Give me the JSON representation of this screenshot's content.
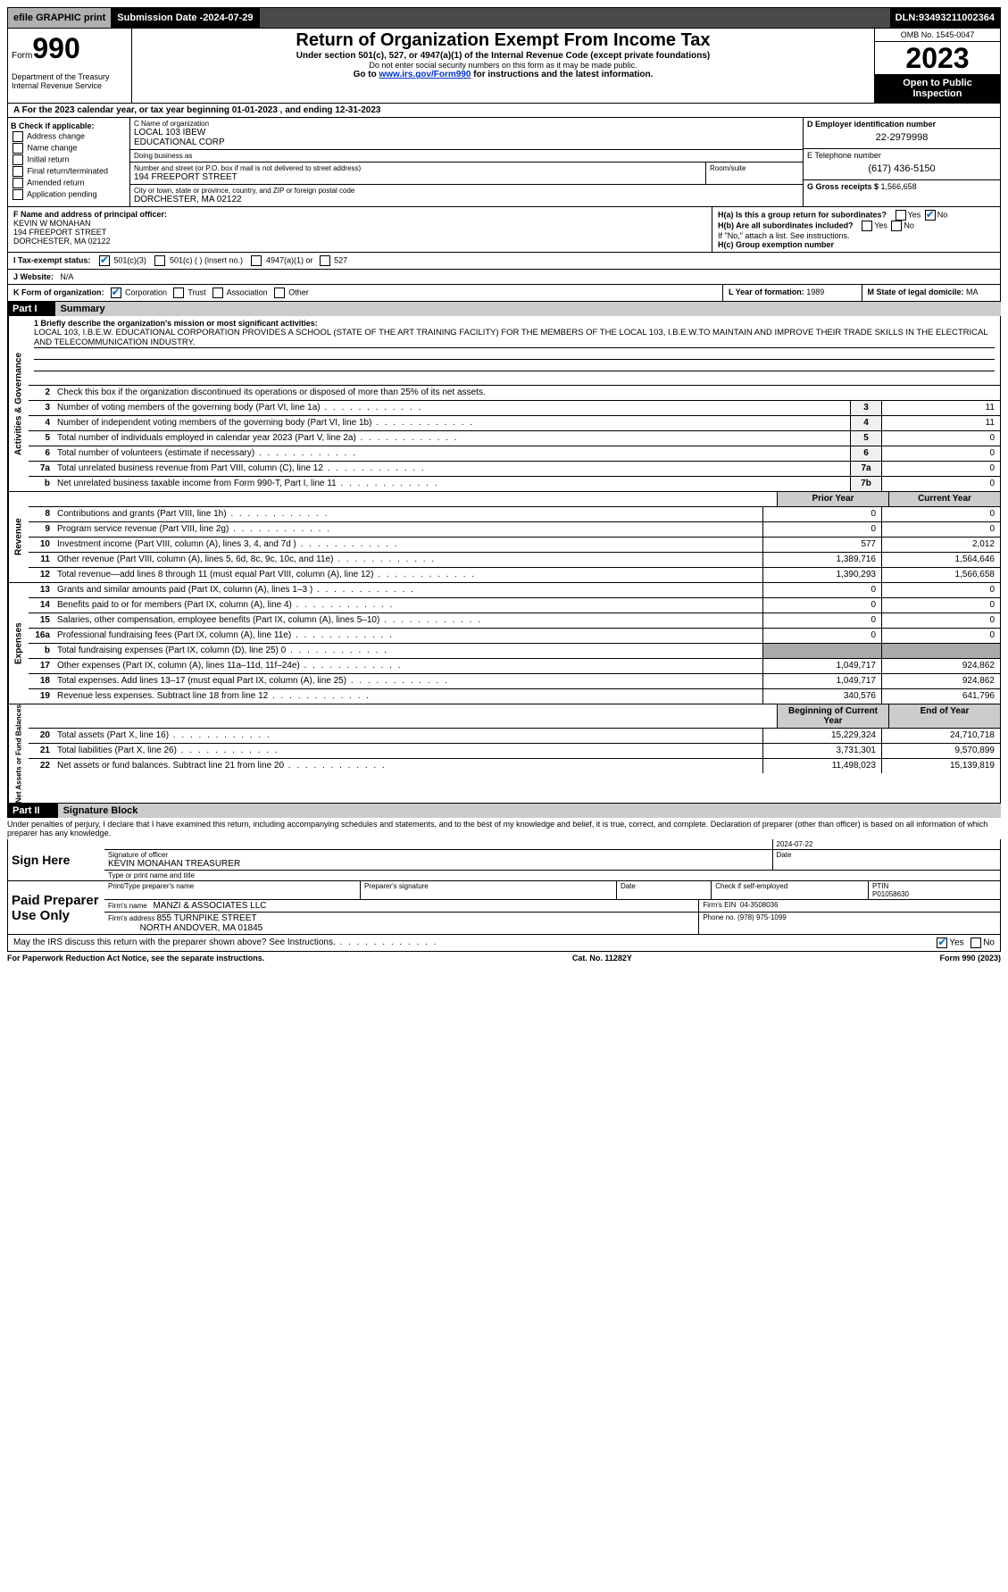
{
  "topbar": {
    "efile": "efile GRAPHIC print",
    "submission_label": "Submission Date - ",
    "submission_date": "2024-07-29",
    "dln_label": "DLN: ",
    "dln": "93493211002364"
  },
  "header": {
    "form_prefix": "Form",
    "form_number": "990",
    "dept": "Department of the Treasury Internal Revenue Service",
    "title": "Return of Organization Exempt From Income Tax",
    "sub1": "Under section 501(c), 527, or 4947(a)(1) of the Internal Revenue Code (except private foundations)",
    "sub2": "Do not enter social security numbers on this form as it may be made public.",
    "sub3_pre": "Go to ",
    "sub3_link": "www.irs.gov/Form990",
    "sub3_post": " for instructions and the latest information.",
    "omb": "OMB No. 1545-0047",
    "year": "2023",
    "inspect": "Open to Public Inspection"
  },
  "rowA": "A For the 2023 calendar year, or tax year beginning 01-01-2023   , and ending 12-31-2023",
  "colB": {
    "label": "B Check if applicable:",
    "items": [
      "Address change",
      "Name change",
      "Initial return",
      "Final return/terminated",
      "Amended return",
      "Application pending"
    ]
  },
  "colC": {
    "name_label": "C Name of organization",
    "name1": "LOCAL 103 IBEW",
    "name2": "EDUCATIONAL CORP",
    "dba_label": "Doing business as",
    "addr_label": "Number and street (or P.O. box if mail is not delivered to street address)",
    "addr": "194 FREEPORT STREET",
    "room_label": "Room/suite",
    "city_label": "City or town, state or province, country, and ZIP or foreign postal code",
    "city": "DORCHESTER, MA  02122"
  },
  "colD": {
    "ein_label": "D Employer identification number",
    "ein": "22-2979998",
    "phone_label": "E Telephone number",
    "phone": "(617) 436-5150",
    "gross_label": "G Gross receipts $ ",
    "gross": "1,566,658"
  },
  "rowF": {
    "label": "F  Name and address of principal officer:",
    "name": "KEVIN W MONAHAN",
    "addr1": "194 FREEPORT STREET",
    "addr2": "DORCHESTER, MA  02122"
  },
  "rowH": {
    "ha": "H(a)  Is this a group return for subordinates?",
    "hb": "H(b)  Are all subordinates included?",
    "hb2": "If \"No,\" attach a list. See instructions.",
    "hc": "H(c)  Group exemption number",
    "yes": "Yes",
    "no": "No"
  },
  "rowI": {
    "label": "I   Tax-exempt status:",
    "o1": "501(c)(3)",
    "o2": "501(c) (  ) (insert no.)",
    "o3": "4947(a)(1) or",
    "o4": "527"
  },
  "rowJ": {
    "label": "J   Website:",
    "val": "N/A"
  },
  "rowK": {
    "label": "K Form of organization:",
    "o1": "Corporation",
    "o2": "Trust",
    "o3": "Association",
    "o4": "Other"
  },
  "rowL": {
    "label": "L Year of formation: ",
    "val": "1989"
  },
  "rowM": {
    "label": "M State of legal domicile: ",
    "val": "MA"
  },
  "part1": {
    "num": "Part I",
    "title": "Summary",
    "mission_label": "1   Briefly describe the organization's mission or most significant activities:",
    "mission": "LOCAL 103, I.B.E.W. EDUCATIONAL CORPORATION PROVIDES A SCHOOL (STATE OF THE ART TRAINING FACILITY) FOR THE MEMBERS OF THE LOCAL 103, I.B.E.W.TO MAINTAIN AND IMPROVE THEIR TRADE SKILLS IN THE ELECTRICAL AND TELECOMMUNICATION INDUSTRY.",
    "line2": "Check this box       if the organization discontinued its operations or disposed of more than 25% of its net assets.",
    "sections": {
      "gov": "Activities & Governance",
      "rev": "Revenue",
      "exp": "Expenses",
      "net": "Net Assets or Fund Balances"
    },
    "hdr_prior": "Prior Year",
    "hdr_current": "Current Year",
    "hdr_boy": "Beginning of Current Year",
    "hdr_eoy": "End of Year",
    "rows_gov": [
      {
        "n": "3",
        "t": "Number of voting members of the governing body (Part VI, line 1a)",
        "box": "3",
        "v": "11"
      },
      {
        "n": "4",
        "t": "Number of independent voting members of the governing body (Part VI, line 1b)",
        "box": "4",
        "v": "11"
      },
      {
        "n": "5",
        "t": "Total number of individuals employed in calendar year 2023 (Part V, line 2a)",
        "box": "5",
        "v": "0"
      },
      {
        "n": "6",
        "t": "Total number of volunteers (estimate if necessary)",
        "box": "6",
        "v": "0"
      },
      {
        "n": "7a",
        "t": "Total unrelated business revenue from Part VIII, column (C), line 12",
        "box": "7a",
        "v": "0"
      },
      {
        "n": "b",
        "t": "Net unrelated business taxable income from Form 990-T, Part I, line 11",
        "box": "7b",
        "v": "0"
      }
    ],
    "rows_rev": [
      {
        "n": "8",
        "t": "Contributions and grants (Part VIII, line 1h)",
        "p": "0",
        "c": "0"
      },
      {
        "n": "9",
        "t": "Program service revenue (Part VIII, line 2g)",
        "p": "0",
        "c": "0"
      },
      {
        "n": "10",
        "t": "Investment income (Part VIII, column (A), lines 3, 4, and 7d )",
        "p": "577",
        "c": "2,012"
      },
      {
        "n": "11",
        "t": "Other revenue (Part VIII, column (A), lines 5, 6d, 8c, 9c, 10c, and 11e)",
        "p": "1,389,716",
        "c": "1,564,646"
      },
      {
        "n": "12",
        "t": "Total revenue—add lines 8 through 11 (must equal Part VIII, column (A), line 12)",
        "p": "1,390,293",
        "c": "1,566,658"
      }
    ],
    "rows_exp": [
      {
        "n": "13",
        "t": "Grants and similar amounts paid (Part IX, column (A), lines 1–3 )",
        "p": "0",
        "c": "0"
      },
      {
        "n": "14",
        "t": "Benefits paid to or for members (Part IX, column (A), line 4)",
        "p": "0",
        "c": "0"
      },
      {
        "n": "15",
        "t": "Salaries, other compensation, employee benefits (Part IX, column (A), lines 5–10)",
        "p": "0",
        "c": "0"
      },
      {
        "n": "16a",
        "t": "Professional fundraising fees (Part IX, column (A), line 11e)",
        "p": "0",
        "c": "0"
      },
      {
        "n": "b",
        "t": "Total fundraising expenses (Part IX, column (D), line 25) 0",
        "p": "",
        "c": "",
        "shade": true
      },
      {
        "n": "17",
        "t": "Other expenses (Part IX, column (A), lines 11a–11d, 11f–24e)",
        "p": "1,049,717",
        "c": "924,862"
      },
      {
        "n": "18",
        "t": "Total expenses. Add lines 13–17 (must equal Part IX, column (A), line 25)",
        "p": "1,049,717",
        "c": "924,862"
      },
      {
        "n": "19",
        "t": "Revenue less expenses. Subtract line 18 from line 12",
        "p": "340,576",
        "c": "641,796"
      }
    ],
    "rows_net": [
      {
        "n": "20",
        "t": "Total assets (Part X, line 16)",
        "p": "15,229,324",
        "c": "24,710,718"
      },
      {
        "n": "21",
        "t": "Total liabilities (Part X, line 26)",
        "p": "3,731,301",
        "c": "9,570,899"
      },
      {
        "n": "22",
        "t": "Net assets or fund balances. Subtract line 21 from line 20",
        "p": "11,498,023",
        "c": "15,139,819"
      }
    ]
  },
  "part2": {
    "num": "Part II",
    "title": "Signature Block",
    "decl": "Under penalties of perjury, I declare that I have examined this return, including accompanying schedules and statements, and to the best of my knowledge and belief, it is true, correct, and complete. Declaration of preparer (other than officer) is based on all information of which preparer has any knowledge.",
    "sign_here": "Sign Here",
    "sig_officer": "Signature of officer",
    "date": "Date",
    "sig_date": "2024-07-22",
    "officer_name": "KEVIN MONAHAN TREASURER",
    "type_name": "Type or print name and title",
    "paid": "Paid Preparer Use Only",
    "prep_name_label": "Print/Type preparer's name",
    "prep_sig_label": "Preparer's signature",
    "check_self": "Check       if self-employed",
    "ptin_label": "PTIN",
    "ptin": "P01058630",
    "firm_name_label": "Firm's name",
    "firm_name": "MANZI & ASSOCIATES LLC",
    "firm_ein_label": "Firm's EIN",
    "firm_ein": "04-3508036",
    "firm_addr_label": "Firm's address",
    "firm_addr1": "855 TURNPIKE STREET",
    "firm_addr2": "NORTH ANDOVER, MA  01845",
    "phone_label": "Phone no.",
    "phone": "(978) 975-1099",
    "discuss": "May the IRS discuss this return with the preparer shown above? See Instructions."
  },
  "footer": {
    "left": "For Paperwork Reduction Act Notice, see the separate instructions.",
    "mid": "Cat. No. 11282Y",
    "right": "Form 990 (2023)"
  }
}
